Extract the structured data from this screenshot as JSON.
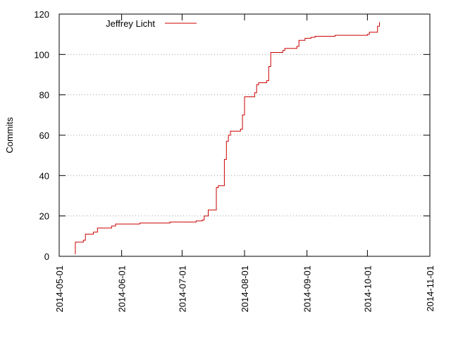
{
  "chart_data": {
    "type": "line",
    "title": "",
    "xlabel": "",
    "ylabel": "Commits",
    "xlim": [
      "2014-05-01",
      "2014-11-01"
    ],
    "ylim": [
      0,
      120
    ],
    "grid": "horizontal dotted",
    "legend_position": "top-left",
    "x_ticks": [
      "2014-05-01",
      "2014-06-01",
      "2014-07-01",
      "2014-08-01",
      "2014-09-01",
      "2014-10-01",
      "2014-11-01"
    ],
    "y_ticks": [
      0,
      20,
      40,
      60,
      80,
      100,
      120
    ],
    "series": [
      {
        "name": "Jeffrey Licht",
        "color": "#cc0000",
        "points": [
          [
            "2014-05-09",
            1
          ],
          [
            "2014-05-09",
            7
          ],
          [
            "2014-05-13",
            8
          ],
          [
            "2014-05-14",
            11
          ],
          [
            "2014-05-18",
            12
          ],
          [
            "2014-05-20",
            14
          ],
          [
            "2014-05-27",
            15
          ],
          [
            "2014-05-29",
            16
          ],
          [
            "2014-06-10",
            16.5
          ],
          [
            "2014-06-25",
            17
          ],
          [
            "2014-07-08",
            17.5
          ],
          [
            "2014-07-11",
            18
          ],
          [
            "2014-07-12",
            20
          ],
          [
            "2014-07-14",
            23
          ],
          [
            "2014-07-18",
            24
          ],
          [
            "2014-07-18",
            34
          ],
          [
            "2014-07-19",
            35
          ],
          [
            "2014-07-22",
            36
          ],
          [
            "2014-07-22",
            48
          ],
          [
            "2014-07-23",
            49
          ],
          [
            "2014-07-23",
            57
          ],
          [
            "2014-07-24",
            60
          ],
          [
            "2014-07-25",
            62
          ],
          [
            "2014-07-30",
            63
          ],
          [
            "2014-07-31",
            70
          ],
          [
            "2014-08-01",
            75
          ],
          [
            "2014-08-01",
            79
          ],
          [
            "2014-08-06",
            81
          ],
          [
            "2014-08-07",
            85
          ],
          [
            "2014-08-08",
            86
          ],
          [
            "2014-08-12",
            87
          ],
          [
            "2014-08-13",
            94
          ],
          [
            "2014-08-14",
            101
          ],
          [
            "2014-08-20",
            102
          ],
          [
            "2014-08-21",
            103
          ],
          [
            "2014-08-27",
            104
          ],
          [
            "2014-08-28",
            107
          ],
          [
            "2014-08-31",
            108
          ],
          [
            "2014-09-03",
            108.5
          ],
          [
            "2014-09-05",
            109
          ],
          [
            "2014-09-15",
            109.5
          ],
          [
            "2014-10-01",
            110
          ],
          [
            "2014-10-02",
            111
          ],
          [
            "2014-10-06",
            112
          ],
          [
            "2014-10-06",
            114
          ],
          [
            "2014-10-07",
            116
          ]
        ]
      }
    ]
  }
}
